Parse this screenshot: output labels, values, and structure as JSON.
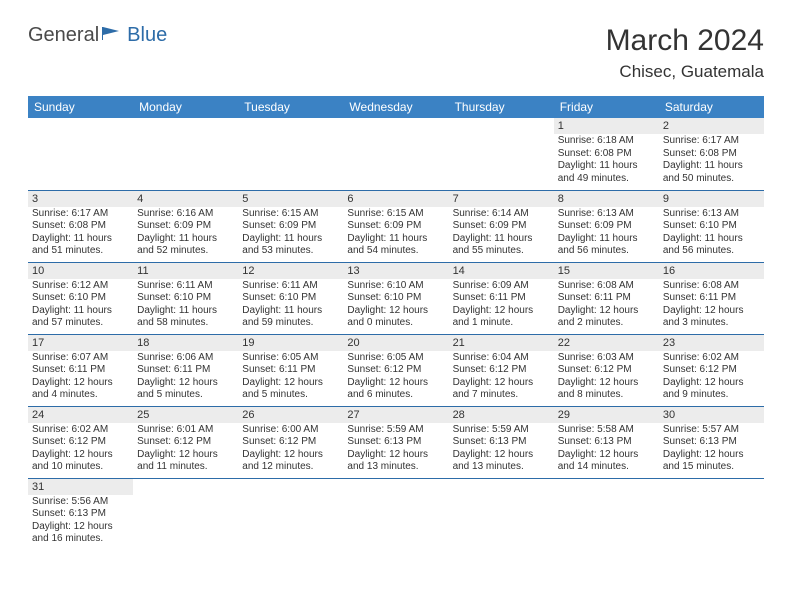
{
  "logo": {
    "general": "General",
    "blue": "Blue"
  },
  "title": "March 2024",
  "location": "Chisec, Guatemala",
  "colors": {
    "header_bg": "#3b82c4",
    "header_text": "#ffffff",
    "accent": "#2d6ca8",
    "shade": "#ececec",
    "text": "#333333"
  },
  "weekday_headers": [
    "Sunday",
    "Monday",
    "Tuesday",
    "Wednesday",
    "Thursday",
    "Friday",
    "Saturday"
  ],
  "weeks": [
    [
      null,
      null,
      null,
      null,
      null,
      {
        "n": "1",
        "sunrise": "6:18 AM",
        "sunset": "6:08 PM",
        "daylight": "11 hours and 49 minutes."
      },
      {
        "n": "2",
        "sunrise": "6:17 AM",
        "sunset": "6:08 PM",
        "daylight": "11 hours and 50 minutes."
      }
    ],
    [
      {
        "n": "3",
        "sunrise": "6:17 AM",
        "sunset": "6:08 PM",
        "daylight": "11 hours and 51 minutes."
      },
      {
        "n": "4",
        "sunrise": "6:16 AM",
        "sunset": "6:09 PM",
        "daylight": "11 hours and 52 minutes."
      },
      {
        "n": "5",
        "sunrise": "6:15 AM",
        "sunset": "6:09 PM",
        "daylight": "11 hours and 53 minutes."
      },
      {
        "n": "6",
        "sunrise": "6:15 AM",
        "sunset": "6:09 PM",
        "daylight": "11 hours and 54 minutes."
      },
      {
        "n": "7",
        "sunrise": "6:14 AM",
        "sunset": "6:09 PM",
        "daylight": "11 hours and 55 minutes."
      },
      {
        "n": "8",
        "sunrise": "6:13 AM",
        "sunset": "6:09 PM",
        "daylight": "11 hours and 56 minutes."
      },
      {
        "n": "9",
        "sunrise": "6:13 AM",
        "sunset": "6:10 PM",
        "daylight": "11 hours and 56 minutes."
      }
    ],
    [
      {
        "n": "10",
        "sunrise": "6:12 AM",
        "sunset": "6:10 PM",
        "daylight": "11 hours and 57 minutes."
      },
      {
        "n": "11",
        "sunrise": "6:11 AM",
        "sunset": "6:10 PM",
        "daylight": "11 hours and 58 minutes."
      },
      {
        "n": "12",
        "sunrise": "6:11 AM",
        "sunset": "6:10 PM",
        "daylight": "11 hours and 59 minutes."
      },
      {
        "n": "13",
        "sunrise": "6:10 AM",
        "sunset": "6:10 PM",
        "daylight": "12 hours and 0 minutes."
      },
      {
        "n": "14",
        "sunrise": "6:09 AM",
        "sunset": "6:11 PM",
        "daylight": "12 hours and 1 minute."
      },
      {
        "n": "15",
        "sunrise": "6:08 AM",
        "sunset": "6:11 PM",
        "daylight": "12 hours and 2 minutes."
      },
      {
        "n": "16",
        "sunrise": "6:08 AM",
        "sunset": "6:11 PM",
        "daylight": "12 hours and 3 minutes."
      }
    ],
    [
      {
        "n": "17",
        "sunrise": "6:07 AM",
        "sunset": "6:11 PM",
        "daylight": "12 hours and 4 minutes."
      },
      {
        "n": "18",
        "sunrise": "6:06 AM",
        "sunset": "6:11 PM",
        "daylight": "12 hours and 5 minutes."
      },
      {
        "n": "19",
        "sunrise": "6:05 AM",
        "sunset": "6:11 PM",
        "daylight": "12 hours and 5 minutes."
      },
      {
        "n": "20",
        "sunrise": "6:05 AM",
        "sunset": "6:12 PM",
        "daylight": "12 hours and 6 minutes."
      },
      {
        "n": "21",
        "sunrise": "6:04 AM",
        "sunset": "6:12 PM",
        "daylight": "12 hours and 7 minutes."
      },
      {
        "n": "22",
        "sunrise": "6:03 AM",
        "sunset": "6:12 PM",
        "daylight": "12 hours and 8 minutes."
      },
      {
        "n": "23",
        "sunrise": "6:02 AM",
        "sunset": "6:12 PM",
        "daylight": "12 hours and 9 minutes."
      }
    ],
    [
      {
        "n": "24",
        "sunrise": "6:02 AM",
        "sunset": "6:12 PM",
        "daylight": "12 hours and 10 minutes."
      },
      {
        "n": "25",
        "sunrise": "6:01 AM",
        "sunset": "6:12 PM",
        "daylight": "12 hours and 11 minutes."
      },
      {
        "n": "26",
        "sunrise": "6:00 AM",
        "sunset": "6:12 PM",
        "daylight": "12 hours and 12 minutes."
      },
      {
        "n": "27",
        "sunrise": "5:59 AM",
        "sunset": "6:13 PM",
        "daylight": "12 hours and 13 minutes."
      },
      {
        "n": "28",
        "sunrise": "5:59 AM",
        "sunset": "6:13 PM",
        "daylight": "12 hours and 13 minutes."
      },
      {
        "n": "29",
        "sunrise": "5:58 AM",
        "sunset": "6:13 PM",
        "daylight": "12 hours and 14 minutes."
      },
      {
        "n": "30",
        "sunrise": "5:57 AM",
        "sunset": "6:13 PM",
        "daylight": "12 hours and 15 minutes."
      }
    ],
    [
      {
        "n": "31",
        "sunrise": "5:56 AM",
        "sunset": "6:13 PM",
        "daylight": "12 hours and 16 minutes."
      },
      null,
      null,
      null,
      null,
      null,
      null
    ]
  ],
  "labels": {
    "sunrise": "Sunrise:",
    "sunset": "Sunset:",
    "daylight": "Daylight:"
  }
}
